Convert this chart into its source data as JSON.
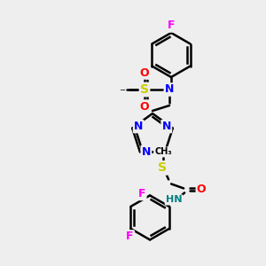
{
  "bg_color": "#eeeeee",
  "atom_colors": {
    "C": "#000000",
    "N": "#0000ff",
    "O": "#ff0000",
    "S": "#cccc00",
    "F": "#ff00ff",
    "H": "#008080"
  },
  "bond_color": "#000000",
  "bond_width": 1.8,
  "figsize": [
    3.0,
    3.0
  ],
  "dpi": 100
}
